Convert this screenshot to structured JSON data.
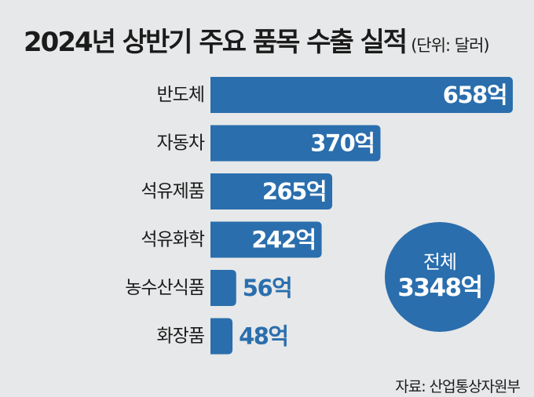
{
  "title": "2024년 상반기 주요 품목 수출 실적",
  "unit_note": "(단위: 달러)",
  "source": "자료: 산업통상자원부",
  "total": {
    "label": "전체",
    "value": "3348억"
  },
  "colors": {
    "bar": "#2a6ead",
    "bar_label_inside": "#ffffff",
    "bar_label_outside": "#2a6ead",
    "background": "#e7e8e9"
  },
  "chart_data": {
    "type": "bar",
    "orientation": "horizontal",
    "categories": [
      "반도체",
      "자동차",
      "석유제품",
      "석유화학",
      "농수산식품",
      "화장품"
    ],
    "values": [
      658,
      370,
      265,
      242,
      56,
      48
    ],
    "value_labels": [
      "658억",
      "370억",
      "265억",
      "242억",
      "56억",
      "48억"
    ],
    "title": "2024년 상반기 주요 품목 수출 실적",
    "xlabel": "",
    "ylabel": "",
    "grid": false
  }
}
